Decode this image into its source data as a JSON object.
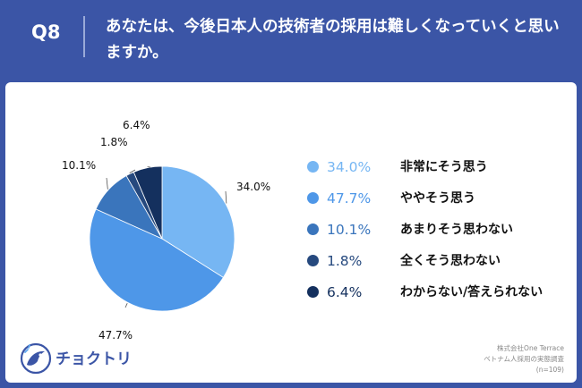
{
  "header": {
    "question_number": "Q8",
    "question_text": "あなたは、今後日本人の技術者の採用は難しくなっていくと思いますか。"
  },
  "chart_data": {
    "type": "pie",
    "categories": [
      "非常にそう思う",
      "ややそう思う",
      "あまりそう思わない",
      "全くそう思わない",
      "わからない/答えられない"
    ],
    "values": [
      34.0,
      47.7,
      10.1,
      1.8,
      6.4
    ],
    "value_labels": [
      "34.0%",
      "47.7%",
      "10.1%",
      "1.8%",
      "6.4%"
    ],
    "colors": [
      "#76B6F3",
      "#4E97E8",
      "#3A75BC",
      "#26497E",
      "#14305E"
    ],
    "legend_placement": "right"
  },
  "brand": {
    "name": "チョクトリ"
  },
  "source": {
    "line1": "株式会社One Terrace",
    "line2": "ベトナム人採用の実態調査",
    "line3": "(n=109)"
  }
}
